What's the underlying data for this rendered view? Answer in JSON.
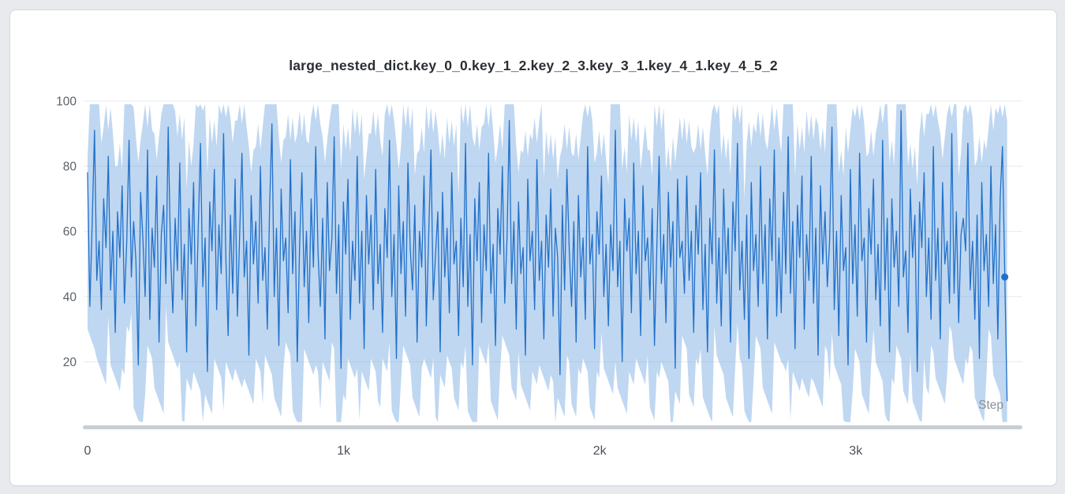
{
  "colors": {
    "page_bg": "#e8eaee",
    "card_bg": "#ffffff",
    "line": "#2170c9",
    "band": "#7fb0e4"
  },
  "chart_data": {
    "type": "line",
    "title": "large_nested_dict.key_0_0.key_1_2.key_2_3.key_3_1.key_4_1.key_4_5_2",
    "xlabel": "Step",
    "ylabel": "",
    "legend": "none",
    "grid": "horizontal",
    "xlim": [
      0,
      3620
    ],
    "ylim": [
      0,
      100
    ],
    "x_step": 9,
    "x_ticks": [
      {
        "label": "0",
        "value": 0
      },
      {
        "label": "1k",
        "value": 1000
      },
      {
        "label": "2k",
        "value": 2000
      },
      {
        "label": "3k",
        "value": 3000
      }
    ],
    "y_ticks": [
      20,
      40,
      60,
      80,
      100
    ],
    "end_dot_index": 398,
    "band": {
      "window": 2,
      "extend_max": 15,
      "extend_min": 17
    },
    "series": [
      {
        "name": "large_nested_dict.key_0_0.key_1_2.key_2_3.key_3_1.key_4_1.key_4_5_2",
        "values": [
          78,
          37,
          62,
          91,
          45,
          57,
          36,
          70,
          55,
          83,
          42,
          60,
          29,
          66,
          52,
          74,
          38,
          57,
          88,
          46,
          63,
          51,
          19,
          72,
          58,
          40,
          85,
          33,
          61,
          49,
          77,
          26,
          59,
          68,
          44,
          92,
          53,
          35,
          64,
          48,
          81,
          39,
          56,
          23,
          67,
          50,
          75,
          31,
          60,
          87,
          43,
          58,
          17,
          69,
          54,
          79,
          36,
          62,
          47,
          90,
          52,
          28,
          65,
          41,
          76,
          34,
          59,
          84,
          46,
          57,
          22,
          71,
          50,
          63,
          38,
          80,
          45,
          55,
          30,
          68,
          93,
          40,
          61,
          25,
          73,
          51,
          58,
          35,
          82,
          47,
          66,
          20,
          56,
          78,
          43,
          60,
          32,
          70,
          49,
          86,
          54,
          37,
          64,
          27,
          75,
          48,
          58,
          89,
          41,
          62,
          18,
          69,
          53,
          76,
          33,
          57,
          45,
          83,
          38,
          60,
          24,
          71,
          50,
          65,
          36,
          79,
          44,
          56,
          29,
          67,
          52,
          88,
          40,
          59,
          21,
          74,
          47,
          63,
          34,
          81,
          55,
          42,
          68,
          26,
          60,
          49,
          77,
          31,
          58,
          85,
          39,
          53,
          66,
          23,
          72,
          46,
          61,
          35,
          78,
          50,
          57,
          28,
          64,
          43,
          87,
          37,
          59,
          19,
          70,
          51,
          75,
          32,
          62,
          48,
          84,
          41,
          56,
          25,
          67,
          53,
          80,
          38,
          58,
          94,
          44,
          63,
          30,
          69,
          47,
          55,
          22,
          76,
          51,
          60,
          36,
          82,
          45,
          57,
          27,
          65,
          49,
          73,
          34,
          61,
          52,
          16,
          68,
          42,
          79,
          55,
          37,
          63,
          26,
          71,
          46,
          58,
          33,
          86,
          50,
          59,
          24,
          66,
          53,
          77,
          40,
          56,
          31,
          62,
          48,
          91,
          43,
          57,
          20,
          70,
          54,
          64,
          35,
          81,
          47,
          60,
          28,
          74,
          51,
          58,
          39,
          67,
          25,
          55,
          83,
          44,
          59,
          32,
          72,
          49,
          63,
          18,
          76,
          52,
          57,
          41,
          77,
          45,
          60,
          29,
          68,
          53,
          78,
          36,
          56,
          23,
          64,
          50,
          85,
          38,
          58,
          31,
          73,
          47,
          61,
          26,
          69,
          54,
          87,
          42,
          57,
          33,
          65,
          21,
          75,
          48,
          59,
          37,
          80,
          44,
          62,
          27,
          70,
          51,
          85,
          34,
          58,
          35,
          72,
          47,
          89,
          41,
          63,
          24,
          68,
          52,
          77,
          30,
          59,
          45,
          83,
          38,
          61,
          22,
          74,
          50,
          66,
          43,
          57,
          92,
          36,
          60,
          28,
          71,
          48,
          55,
          19,
          79,
          44,
          62,
          34,
          84,
          51,
          58,
          26,
          67,
          53,
          76,
          39,
          56,
          31,
          88,
          42,
          64,
          23,
          70,
          49,
          60,
          37,
          97,
          46,
          54,
          29,
          73,
          52,
          65,
          17,
          69,
          55,
          78,
          40,
          58,
          33,
          86,
          45,
          61,
          27,
          75,
          50,
          57,
          38,
          90,
          41,
          66,
          32,
          59,
          64,
          54,
          87,
          42,
          57,
          33,
          65,
          21,
          75,
          48,
          59,
          37,
          80,
          44,
          62,
          27,
          70,
          86,
          46,
          8
        ]
      }
    ]
  }
}
